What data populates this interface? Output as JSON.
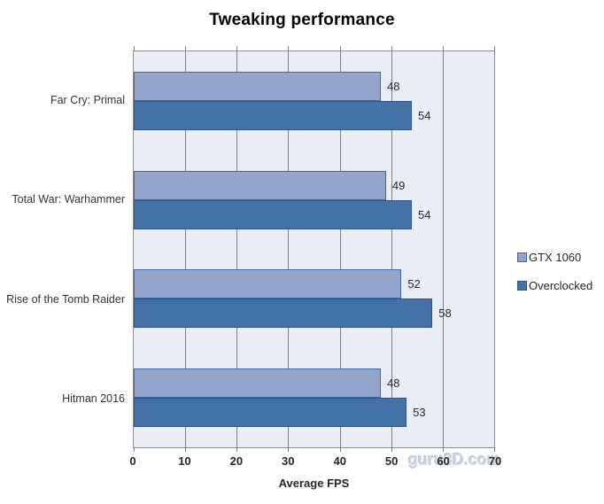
{
  "chart_data": {
    "type": "bar",
    "orientation": "horizontal",
    "title": "Tweaking performance",
    "categories": [
      "Far Cry: Primal",
      "Total War: Warhammer",
      "Rise of the Tomb Raider",
      "Hitman 2016"
    ],
    "series": [
      {
        "name": "GTX 1060",
        "values": [
          48,
          49,
          52,
          48
        ],
        "fill": "#93a5cd",
        "border": "#3f69a0"
      },
      {
        "name": "Overclocked",
        "values": [
          54,
          54,
          58,
          53
        ],
        "fill": "#4272a6",
        "border": "#2d5687"
      }
    ],
    "xlabel": "Average FPS",
    "xlim": [
      0,
      70
    ],
    "xticks": [
      0,
      10,
      20,
      30,
      40,
      50,
      60,
      70
    ],
    "data_labels": true,
    "legend_position": "right",
    "plot_bg": "#e9eef6",
    "gridline_color": "#808080",
    "grid": "vertical"
  },
  "watermark": "guru3D.com"
}
